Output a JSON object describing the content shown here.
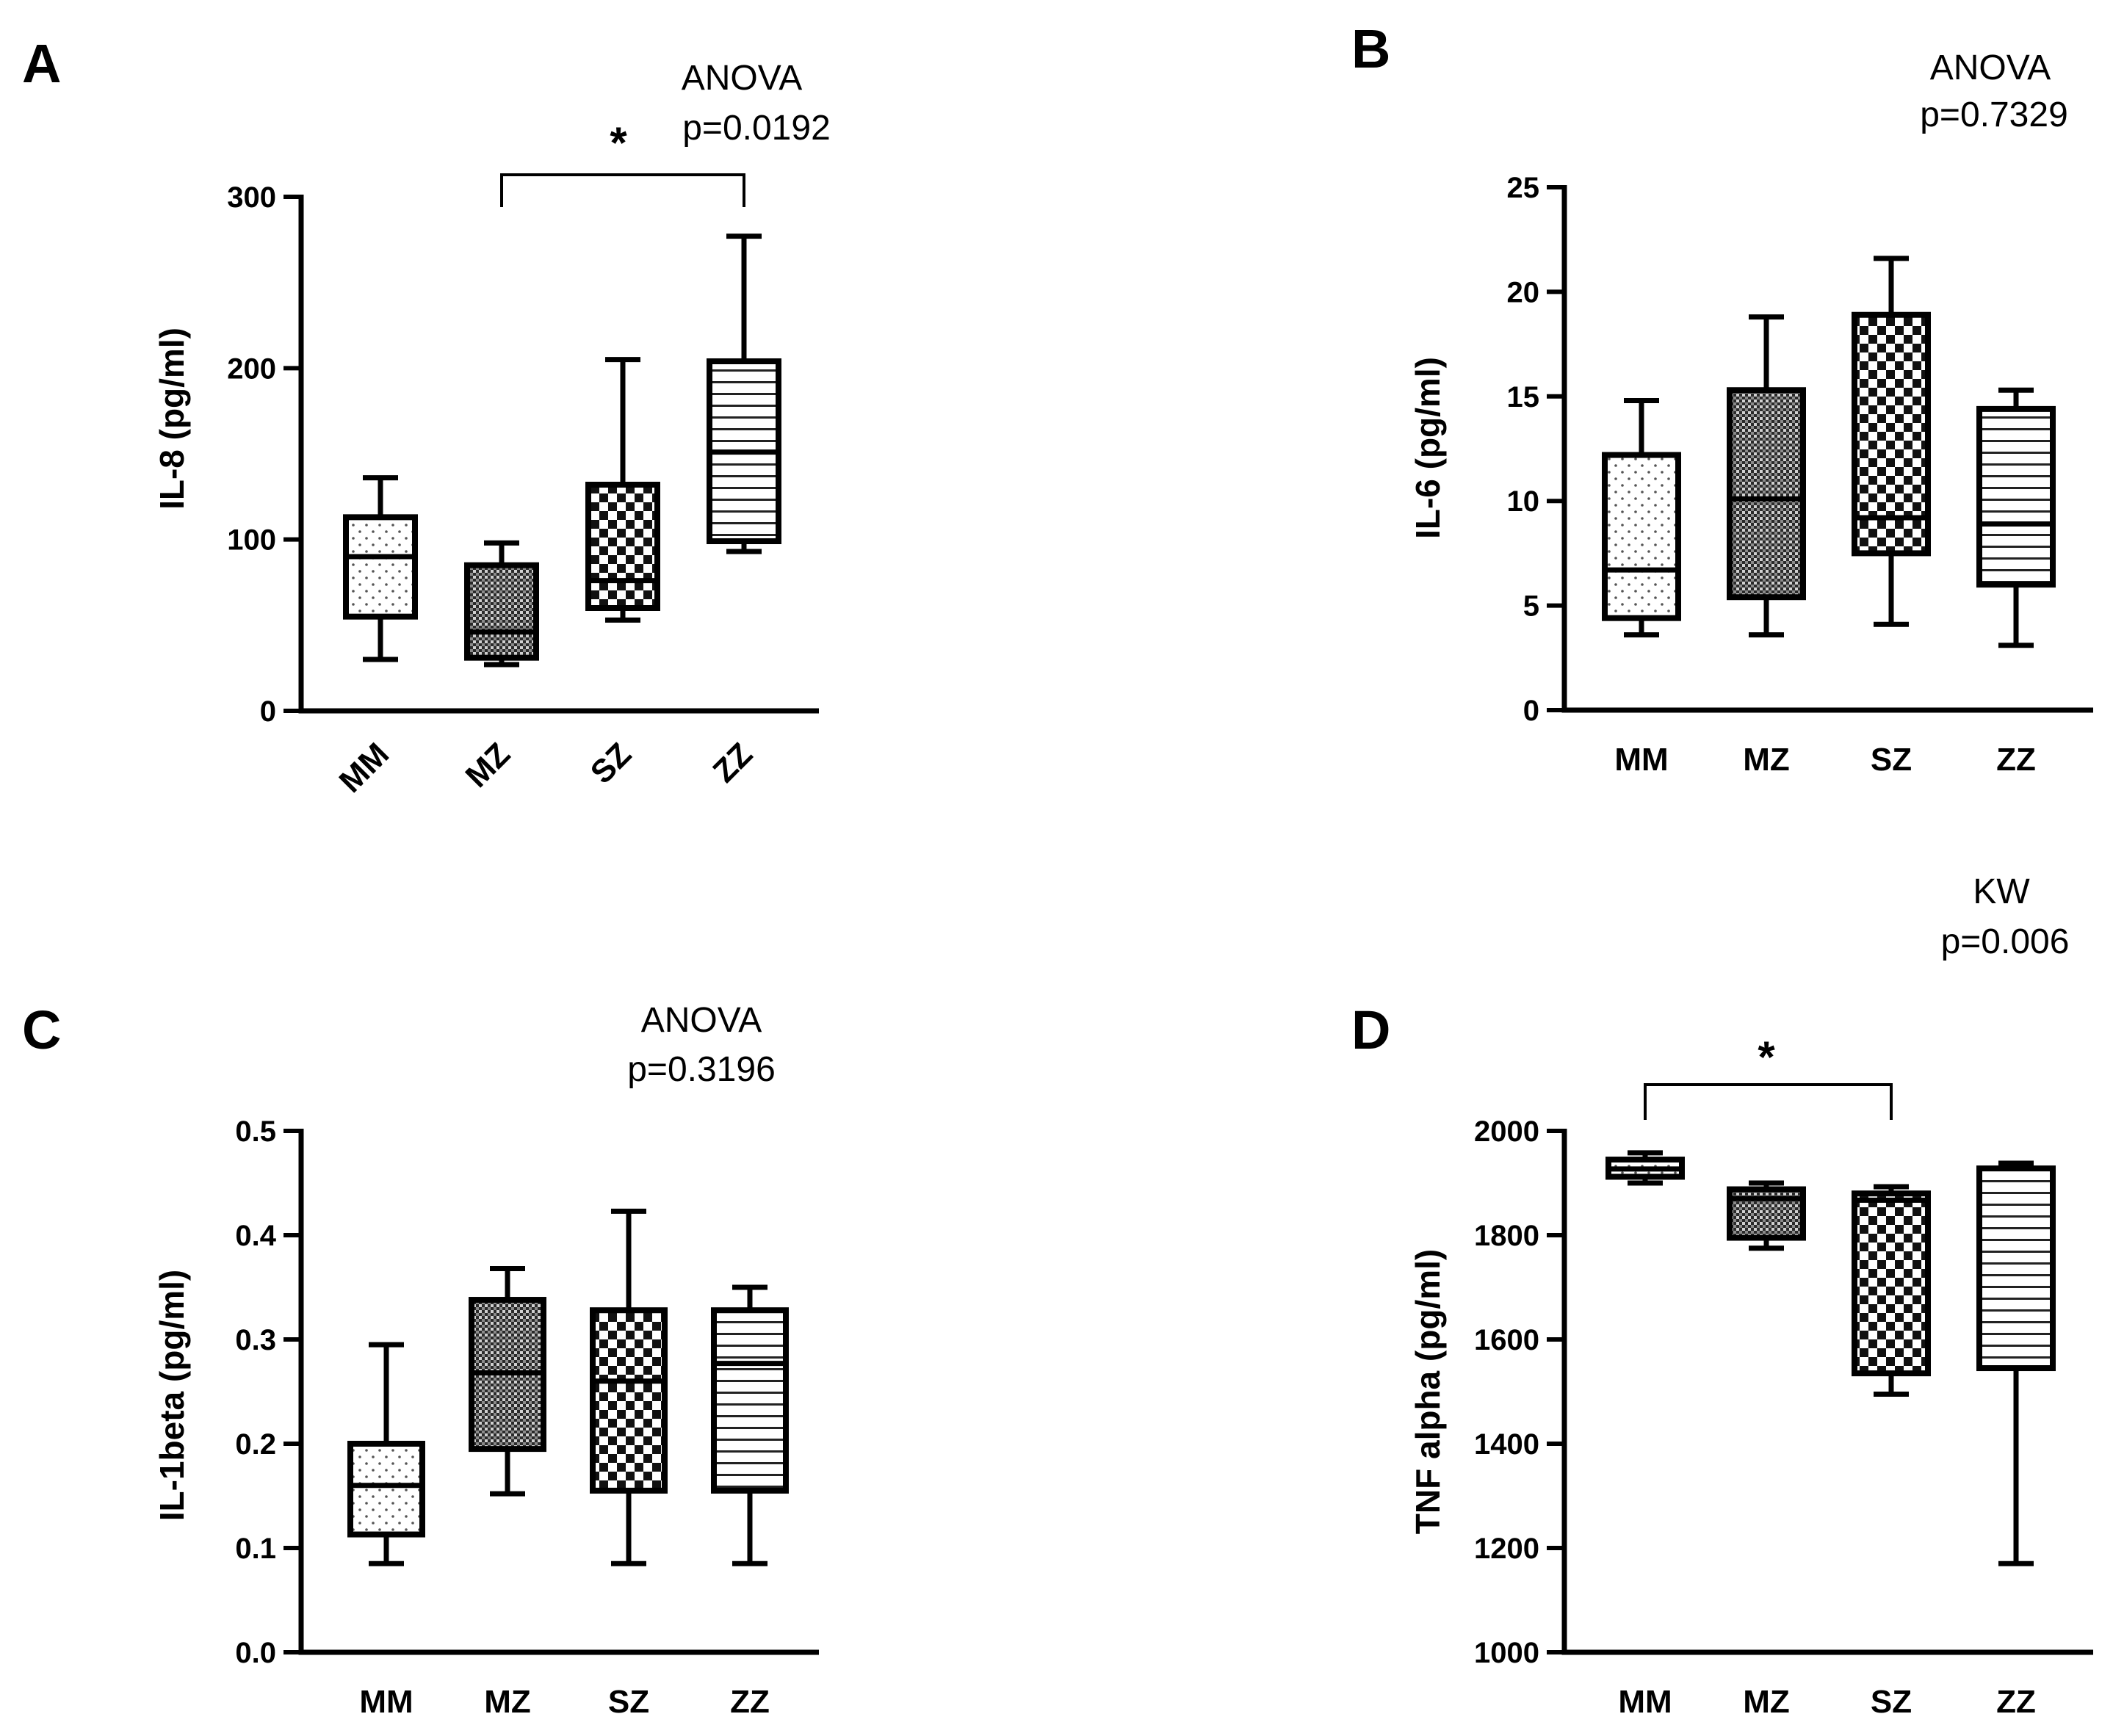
{
  "chart_data": [
    {
      "panel": "A",
      "type": "box",
      "ylabel": "IL-8 (pg/ml)",
      "ylim": [
        0,
        300
      ],
      "yticks": [
        0,
        100,
        200,
        300
      ],
      "categories": [
        "MM",
        "MZ",
        "SZ",
        "ZZ"
      ],
      "rotated_categories": true,
      "test": "ANOVA",
      "p_value": "p=0.0192",
      "boxes": [
        {
          "category": "MM",
          "min": 30,
          "q1": 55,
          "median": 90,
          "q3": 113,
          "max": 136,
          "pattern": "dots"
        },
        {
          "category": "MZ",
          "min": 27,
          "q1": 31,
          "median": 46,
          "q3": 85,
          "max": 98,
          "pattern": "dense"
        },
        {
          "category": "SZ",
          "min": 53,
          "q1": 60,
          "median": 76,
          "q3": 132,
          "max": 205,
          "pattern": "checker"
        },
        {
          "category": "ZZ",
          "min": 93,
          "q1": 99,
          "median": 151,
          "q3": 204,
          "max": 277,
          "pattern": "hlines"
        }
      ],
      "significance": [
        {
          "from": "MZ",
          "to": "ZZ",
          "label": "*"
        }
      ]
    },
    {
      "panel": "B",
      "type": "box",
      "ylabel": "IL-6 (pg/ml)",
      "ylim": [
        0,
        25
      ],
      "yticks": [
        0,
        5,
        10,
        15,
        20,
        25
      ],
      "categories": [
        "MM",
        "MZ",
        "SZ",
        "ZZ"
      ],
      "rotated_categories": false,
      "test": "ANOVA",
      "p_value": "p=0.7329",
      "boxes": [
        {
          "category": "MM",
          "min": 3.6,
          "q1": 4.4,
          "median": 6.7,
          "q3": 12.2,
          "max": 14.8,
          "pattern": "dots"
        },
        {
          "category": "MZ",
          "min": 3.6,
          "q1": 5.4,
          "median": 10.1,
          "q3": 15.3,
          "max": 18.8,
          "pattern": "dense"
        },
        {
          "category": "SZ",
          "min": 4.1,
          "q1": 7.5,
          "median": 9.2,
          "q3": 18.9,
          "max": 21.6,
          "pattern": "checker"
        },
        {
          "category": "ZZ",
          "min": 3.1,
          "q1": 6.0,
          "median": 8.9,
          "q3": 14.4,
          "max": 15.3,
          "pattern": "hlines"
        }
      ],
      "significance": []
    },
    {
      "panel": "C",
      "type": "box",
      "ylabel": "IL-1beta (pg/ml)",
      "ylim": [
        0,
        0.5
      ],
      "yticks": [
        "0.0",
        "0.1",
        "0.2",
        "0.3",
        "0.4",
        "0.5"
      ],
      "categories": [
        "MM",
        "MZ",
        "SZ",
        "ZZ"
      ],
      "rotated_categories": false,
      "test": "ANOVA",
      "p_value": "p=0.3196",
      "boxes": [
        {
          "category": "MM",
          "min": 0.085,
          "q1": 0.113,
          "median": 0.16,
          "q3": 0.2,
          "max": 0.295,
          "pattern": "dots"
        },
        {
          "category": "MZ",
          "min": 0.152,
          "q1": 0.195,
          "median": 0.268,
          "q3": 0.338,
          "max": 0.368,
          "pattern": "dense"
        },
        {
          "category": "SZ",
          "min": 0.085,
          "q1": 0.155,
          "median": 0.26,
          "q3": 0.328,
          "max": 0.423,
          "pattern": "checker"
        },
        {
          "category": "ZZ",
          "min": 0.085,
          "q1": 0.155,
          "median": 0.277,
          "q3": 0.328,
          "max": 0.35,
          "pattern": "hlines"
        }
      ],
      "significance": []
    },
    {
      "panel": "D",
      "type": "box",
      "ylabel": "TNF alpha (pg/ml)",
      "ylim": [
        1000,
        2000
      ],
      "yticks": [
        1000,
        1200,
        1400,
        1600,
        1800,
        2000
      ],
      "categories": [
        "MM",
        "MZ",
        "SZ",
        "ZZ"
      ],
      "rotated_categories": false,
      "test": "KW",
      "p_value": "p=0.006",
      "boxes": [
        {
          "category": "MM",
          "min": 1900,
          "q1": 1912,
          "median": 1927,
          "q3": 1945,
          "max": 1958,
          "pattern": "dots"
        },
        {
          "category": "MZ",
          "min": 1775,
          "q1": 1795,
          "median": 1870,
          "q3": 1888,
          "max": 1900,
          "pattern": "dense"
        },
        {
          "category": "SZ",
          "min": 1495,
          "q1": 1535,
          "median": 1867,
          "q3": 1880,
          "max": 1893,
          "pattern": "checker"
        },
        {
          "category": "ZZ",
          "min": 1170,
          "q1": 1545,
          "median": 1545,
          "q3": 1928,
          "max": 1938,
          "pattern": "hlines"
        }
      ],
      "significance": [
        {
          "from": "MM",
          "to": "SZ",
          "label": "*"
        }
      ]
    }
  ]
}
